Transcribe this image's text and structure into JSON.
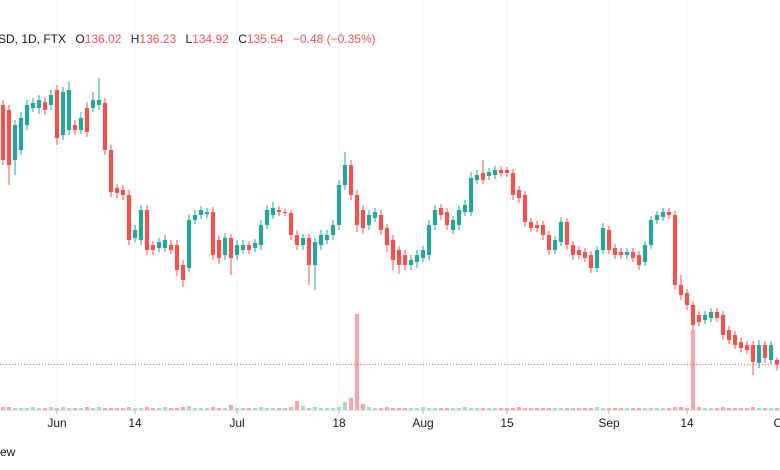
{
  "chart_data": {
    "type": "candlestick",
    "symbol": "SD, 1D, FTX",
    "ohlc_labels": [
      "O",
      "H",
      "L",
      "C"
    ],
    "change": "−0.48 (−0.35%)",
    "footer": "ew",
    "up_color": "#26a69a",
    "down_color": "#ef5350",
    "up_volume_color": "#a8d9cf",
    "down_volume_color": "#f5a8a6",
    "xlim": [
      -0.5,
      129.5
    ],
    "ylim": [
      132,
      172
    ],
    "vlim": [
      0,
      100
    ],
    "xticks": [
      {
        "value": 9,
        "label": "Jun"
      },
      {
        "value": 22,
        "label": "14"
      },
      {
        "value": 39,
        "label": "Jul"
      },
      {
        "value": 56,
        "label": "18"
      },
      {
        "value": 70,
        "label": "Aug"
      },
      {
        "value": 84,
        "label": "15"
      },
      {
        "value": 101,
        "label": "Sep"
      },
      {
        "value": 114,
        "label": "14"
      },
      {
        "value": 130,
        "label": "Oct"
      }
    ],
    "open": [
      161.5,
      161.0,
      156.0,
      157.0,
      159.5,
      161.2,
      161.2,
      161.8,
      161.5,
      163.0,
      158.5,
      159.0,
      159.5,
      159.0,
      161.2,
      161.2,
      161.5,
      161.7,
      157.0,
      153.2,
      153.0,
      152.5,
      148.2,
      148.0,
      151.0,
      147.5,
      147.2,
      147.2,
      147.5,
      147.5,
      145.5,
      145.2,
      150.0,
      150.5,
      150.6,
      150.8,
      148.0,
      146.5,
      148.2,
      146.5,
      147.0,
      147.5,
      147.2,
      147.5,
      149.5,
      150.5,
      151.0,
      150.8,
      150.7,
      148.5,
      147.5,
      148.2,
      145.5,
      147.5,
      148.0,
      148.5,
      149.5,
      153.5,
      155.5,
      152.5,
      151.0,
      149.5,
      150.2,
      150.5,
      149.2,
      148.0,
      147.0,
      146.5,
      145.5,
      145.8,
      146.2,
      146.5,
      149.5,
      151.2,
      150.8,
      149.0,
      149.5,
      150.8,
      150.8,
      154.0,
      154.7,
      154.4,
      154.5,
      155.0,
      155.0,
      154.7,
      153.0,
      152.5,
      149.8,
      149.5,
      149.5,
      148.5,
      147.0,
      147.8,
      149.8,
      147.5,
      147.0,
      146.8,
      146.5,
      145.2,
      147.0,
      149.0,
      147.2,
      146.8,
      146.5,
      146.8,
      146.5,
      145.8,
      147.5,
      150.0,
      150.3,
      150.8,
      150.5,
      143.5,
      142.7,
      141.5,
      140.5,
      140.0,
      140.2,
      140.8,
      140.5,
      139.0,
      138.5,
      137.8,
      137.5,
      137.5,
      135.7,
      137.5,
      136.0,
      136.02
    ],
    "high": [
      162.0,
      161.5,
      160.0,
      160.8,
      162.0,
      162.2,
      162.5,
      162.3,
      163.0,
      163.5,
      163.3,
      163.8,
      160.0,
      160.8,
      161.8,
      162.8,
      164.2,
      162.2,
      157.5,
      153.6,
      153.5,
      153.0,
      149.5,
      151.5,
      151.5,
      147.9,
      148.2,
      148.5,
      148.0,
      148.0,
      146.0,
      150.6,
      151.0,
      151.4,
      151.2,
      151.3,
      148.5,
      148.7,
      148.6,
      148.0,
      148.0,
      147.9,
      148.1,
      150.0,
      151.5,
      151.8,
      151.4,
      151.1,
      151.0,
      149.0,
      148.6,
      148.6,
      148.2,
      149.0,
      149.0,
      150.0,
      154.0,
      156.8,
      156.0,
      153.0,
      151.5,
      151.0,
      151.2,
      151.0,
      149.6,
      148.5,
      147.4,
      147.0,
      146.5,
      147.0,
      147.4,
      150.0,
      151.5,
      151.6,
      151.2,
      150.4,
      151.4,
      152.0,
      154.8,
      155.0,
      156.0,
      155.2,
      155.4,
      155.4,
      155.3,
      155.1,
      153.4,
      152.9,
      150.2,
      149.9,
      149.9,
      148.9,
      148.4,
      150.3,
      150.2,
      147.9,
      147.4,
      147.2,
      146.9,
      147.4,
      149.7,
      149.4,
      147.6,
      147.2,
      147.2,
      147.2,
      146.9,
      147.9,
      150.4,
      150.9,
      151.2,
      151.2,
      150.9,
      144.5,
      143.1,
      141.9,
      140.9,
      140.9,
      141.2,
      141.2,
      140.9,
      139.4,
      138.9,
      138.2,
      137.9,
      137.9,
      138.0,
      137.9,
      137.9,
      136.23
    ],
    "low": [
      155.5,
      153.5,
      154.5,
      156.5,
      159.0,
      160.8,
      160.6,
      160.5,
      161.0,
      157.5,
      158.0,
      158.5,
      158.5,
      158.6,
      158.3,
      160.8,
      161.0,
      156.5,
      152.3,
      152.2,
      152.0,
      147.5,
      147.8,
      147.5,
      146.5,
      146.5,
      146.8,
      146.8,
      146.6,
      144.4,
      143.3,
      144.8,
      149.6,
      150.1,
      150.2,
      146.0,
      145.6,
      146.0,
      144.5,
      146.0,
      146.6,
      146.6,
      146.8,
      147.0,
      149.1,
      150.1,
      150.4,
      150.4,
      148.0,
      147.0,
      147.0,
      143.5,
      143.0,
      147.0,
      147.6,
      148.0,
      149.0,
      153.0,
      152.0,
      148.8,
      148.6,
      149.0,
      149.8,
      148.5,
      146.8,
      145.0,
      144.6,
      145.0,
      145.0,
      145.2,
      145.8,
      146.0,
      149.0,
      150.0,
      149.0,
      148.6,
      149.0,
      150.4,
      150.4,
      153.6,
      153.6,
      154.0,
      154.1,
      154.3,
      154.3,
      152.0,
      151.7,
      149.3,
      148.8,
      148.8,
      148.0,
      146.5,
      146.6,
      147.4,
      147.0,
      146.0,
      146.1,
      145.8,
      144.7,
      144.8,
      146.6,
      146.6,
      146.1,
      146.1,
      146.1,
      145.8,
      145.0,
      145.4,
      147.1,
      149.6,
      149.9,
      150.1,
      143.0,
      142.0,
      141.0,
      139.0,
      139.4,
      139.6,
      139.8,
      139.8,
      138.0,
      137.6,
      137.1,
      136.8,
      136.6,
      134.5,
      135.2,
      135.7,
      135.6,
      134.92
    ],
    "close": [
      156.0,
      155.5,
      159.5,
      160.2,
      161.5,
      161.7,
      162.0,
      161.0,
      162.5,
      158.2,
      162.8,
      163.0,
      159.0,
      160.2,
      158.8,
      162.0,
      162.0,
      157.0,
      152.8,
      152.7,
      152.5,
      148.0,
      149.0,
      151.0,
      147.0,
      147.0,
      147.8,
      148.0,
      147.0,
      145.0,
      144.0,
      150.0,
      150.5,
      151.0,
      150.8,
      146.5,
      146.2,
      148.2,
      146.2,
      147.5,
      147.5,
      147.0,
      147.7,
      149.5,
      151.0,
      151.2,
      150.8,
      150.7,
      148.5,
      147.5,
      148.2,
      145.5,
      147.8,
      148.5,
      148.5,
      149.5,
      153.5,
      155.5,
      152.5,
      149.5,
      149.2,
      150.5,
      150.8,
      149.0,
      147.5,
      146.0,
      145.5,
      145.5,
      146.0,
      146.5,
      147.0,
      149.5,
      151.0,
      150.5,
      149.5,
      150.0,
      151.0,
      151.5,
      154.2,
      154.5,
      154.0,
      154.8,
      155.0,
      154.7,
      154.7,
      152.5,
      152.2,
      149.8,
      149.2,
      149.2,
      148.5,
      147.0,
      148.0,
      149.8,
      147.5,
      146.5,
      146.5,
      146.2,
      145.2,
      147.0,
      149.2,
      147.0,
      146.5,
      146.5,
      146.8,
      146.2,
      145.5,
      147.5,
      150.0,
      150.5,
      150.8,
      150.5,
      143.5,
      142.5,
      141.5,
      139.5,
      139.8,
      140.5,
      140.8,
      140.2,
      138.5,
      138.0,
      137.5,
      137.2,
      137.0,
      135.8,
      137.5,
      136.2,
      137.5,
      135.54
    ],
    "volume": [
      3,
      3,
      2,
      2,
      2,
      3,
      2,
      2,
      3,
      2,
      3,
      2,
      2,
      2,
      3,
      2,
      3,
      2,
      2,
      2,
      2,
      3,
      2,
      2,
      3,
      2,
      2,
      3,
      2,
      2,
      3,
      4,
      2,
      2,
      2,
      3,
      2,
      2,
      5,
      2,
      2,
      2,
      2,
      3,
      2,
      2,
      2,
      2,
      3,
      9,
      4,
      2,
      3,
      2,
      2,
      2,
      3,
      8,
      12,
      96,
      6,
      3,
      2,
      2,
      3,
      2,
      2,
      2,
      2,
      2,
      3,
      2,
      2,
      2,
      2,
      2,
      2,
      3,
      2,
      2,
      2,
      2,
      2,
      2,
      2,
      2,
      3,
      2,
      2,
      2,
      2,
      2,
      2,
      2,
      2,
      2,
      2,
      2,
      2,
      3,
      2,
      2,
      2,
      2,
      2,
      2,
      2,
      2,
      2,
      2,
      2,
      2,
      3,
      3,
      2,
      80,
      3,
      2,
      2,
      2,
      3,
      2,
      2,
      2,
      2,
      3,
      2,
      2,
      2,
      2
    ]
  }
}
